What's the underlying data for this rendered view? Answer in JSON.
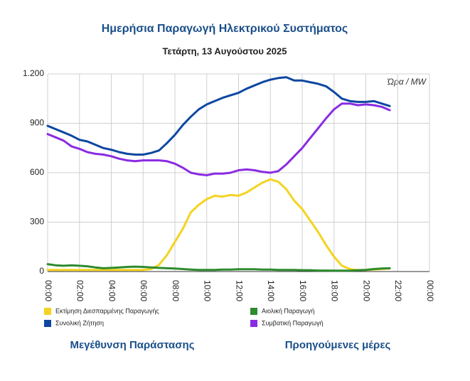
{
  "chart_data": {
    "type": "line",
    "title": "Ημερήσια Παραγωγή Ηλεκτρικού Συστήματος",
    "subtitle": "Τετάρτη, 13 Αυγούστου 2025",
    "annotation": "Ώρα / MW",
    "x": [
      0,
      0.5,
      1,
      1.5,
      2,
      2.5,
      3,
      3.5,
      4,
      4.5,
      5,
      5.5,
      6,
      6.5,
      7,
      7.5,
      8,
      8.5,
      9,
      9.5,
      10,
      10.5,
      11,
      11.5,
      12,
      12.5,
      13,
      13.5,
      14,
      14.5,
      15,
      15.5,
      16,
      16.5,
      17,
      17.5,
      18,
      18.5,
      19,
      19.5,
      20,
      20.5,
      21,
      21.5
    ],
    "xlim": [
      0,
      24
    ],
    "xticks": [
      {
        "value": 0,
        "label": "00:00"
      },
      {
        "value": 2,
        "label": "02:00"
      },
      {
        "value": 4,
        "label": "04:00"
      },
      {
        "value": 6,
        "label": "06:00"
      },
      {
        "value": 8,
        "label": "08:00"
      },
      {
        "value": 10,
        "label": "10:00"
      },
      {
        "value": 12,
        "label": "12:00"
      },
      {
        "value": 14,
        "label": "14:00"
      },
      {
        "value": 16,
        "label": "16:00"
      },
      {
        "value": 18,
        "label": "18:00"
      },
      {
        "value": 20,
        "label": "20:00"
      },
      {
        "value": 22,
        "label": "22:00"
      },
      {
        "value": 24,
        "label": "00:00"
      }
    ],
    "ylim": [
      0,
      1200
    ],
    "yticks": [
      0,
      300,
      600,
      900,
      {
        "value": 1200,
        "label": "1.200"
      }
    ],
    "grid": true,
    "series": [
      {
        "name": "Εκτίμηση Διεσπαρμένης Παραγωγής",
        "color": "#f5d320",
        "values": [
          10,
          10,
          10,
          10,
          10,
          10,
          10,
          10,
          10,
          10,
          10,
          10,
          10,
          15,
          40,
          100,
          180,
          260,
          360,
          405,
          440,
          460,
          455,
          465,
          460,
          480,
          510,
          540,
          560,
          545,
          500,
          430,
          380,
          310,
          240,
          160,
          90,
          35,
          15,
          8,
          10,
          12,
          15,
          18
        ]
      },
      {
        "name": "Αιολική Παραγωγή",
        "color": "#2e8b2e",
        "values": [
          45,
          38,
          35,
          38,
          35,
          32,
          25,
          20,
          22,
          25,
          28,
          30,
          28,
          25,
          22,
          20,
          18,
          15,
          12,
          10,
          10,
          10,
          12,
          12,
          14,
          14,
          14,
          12,
          12,
          10,
          10,
          10,
          8,
          8,
          6,
          6,
          5,
          5,
          5,
          8,
          10,
          15,
          18,
          20
        ]
      },
      {
        "name": "Συνολική Ζήτηση",
        "color": "#0d47a1",
        "values": [
          885,
          865,
          845,
          825,
          800,
          790,
          770,
          750,
          740,
          725,
          715,
          710,
          710,
          720,
          735,
          780,
          830,
          890,
          940,
          985,
          1015,
          1035,
          1055,
          1070,
          1085,
          1110,
          1130,
          1150,
          1165,
          1175,
          1180,
          1160,
          1160,
          1150,
          1140,
          1125,
          1090,
          1050,
          1035,
          1030,
          1030,
          1035,
          1020,
          1005
        ]
      },
      {
        "name": "Συμβατική Παραγωγή",
        "color": "#8a2be2",
        "values": [
          835,
          815,
          795,
          760,
          745,
          725,
          715,
          710,
          700,
          685,
          675,
          670,
          675,
          675,
          675,
          670,
          655,
          630,
          600,
          590,
          585,
          595,
          595,
          600,
          615,
          620,
          615,
          605,
          600,
          610,
          650,
          700,
          750,
          810,
          870,
          930,
          985,
          1020,
          1020,
          1010,
          1015,
          1010,
          1000,
          980
        ]
      }
    ],
    "links": [
      "Μεγέθυνση Παράστασης",
      "Προηγούμενες μέρες"
    ]
  }
}
